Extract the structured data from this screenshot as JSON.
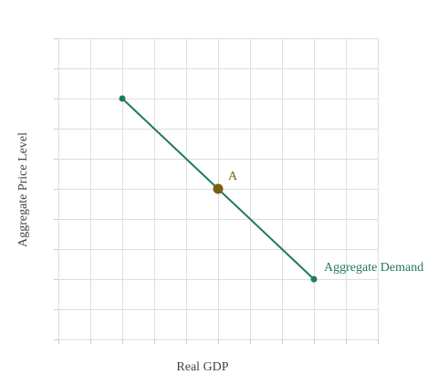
{
  "chart_data": {
    "type": "line",
    "title": "",
    "xlabel": "Real GDP",
    "ylabel": "Aggregate Price Level",
    "xlim": [
      0,
      10
    ],
    "ylim": [
      0,
      10
    ],
    "grid": true,
    "tick_labels_visible": false,
    "series": [
      {
        "name": "Aggregate Demand",
        "color": "#1e7b5b",
        "points": [
          {
            "x": 2,
            "y": 8
          },
          {
            "x": 8,
            "y": 2
          }
        ]
      }
    ],
    "annotations": [
      {
        "label": "A",
        "x": 5,
        "y": 5,
        "color": "#7a5c12"
      }
    ]
  }
}
